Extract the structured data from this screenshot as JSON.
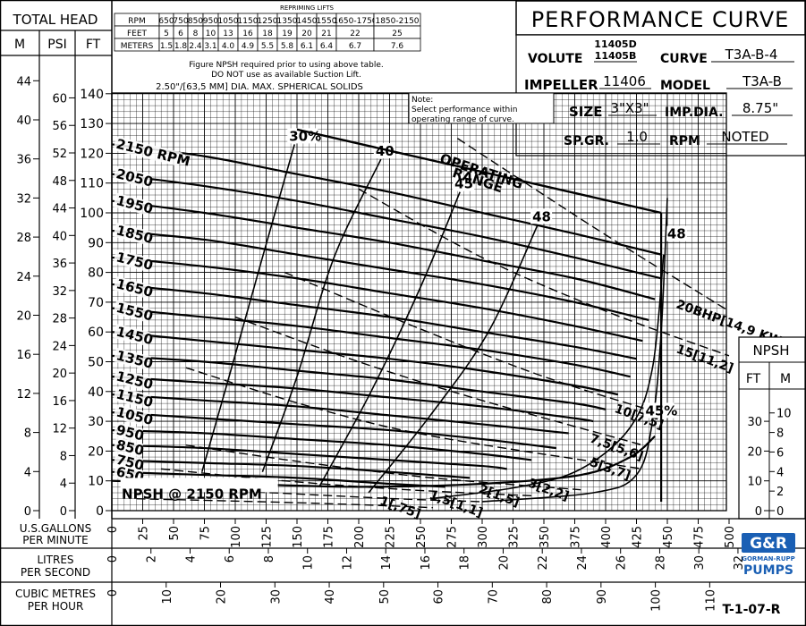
{
  "header": {
    "left_title": "TOTAL HEAD",
    "col_m": "M",
    "col_psi": "PSI",
    "col_ft": "FT",
    "title": "PERFORMANCE CURVE",
    "volute_label": "VOLUTE",
    "volute_value_1": "11405D",
    "volute_value_2": "11405B",
    "curve_label": "CURVE",
    "curve_value": "T3A-B-4",
    "impeller_label": "IMPELLER",
    "impeller_value": "11406",
    "model_label": "MODEL",
    "model_value": "T3A-B",
    "size_label": "SIZE",
    "size_value": "3\"X3\"",
    "impdia_label": "IMP.DIA.",
    "impdia_value": "8.75\"",
    "spgr_label": "SP.GR.",
    "spgr_value": "1.0",
    "rpm_label": "RPM",
    "rpm_value": "NOTED",
    "npsh_label": "NPSH",
    "npsh_ft": "FT",
    "npsh_m": "M",
    "doc_id": "T-1-07-R",
    "brand_logo": "G&R",
    "brand_sub": "GORMAN-RUPP",
    "brand_pumps": "PUMPS"
  },
  "repriming": {
    "title": "REPRIMING LIFTS",
    "rows": [
      {
        "label": "RPM",
        "cells": [
          "650",
          "750",
          "850",
          "950",
          "1050",
          "1150",
          "1250",
          "1350",
          "1450",
          "1550",
          "1650-1750",
          "1850-2150"
        ]
      },
      {
        "label": "FEET",
        "cells": [
          "5",
          "6",
          "8",
          "10",
          "13",
          "16",
          "18",
          "19",
          "20",
          "21",
          "22",
          "25"
        ]
      },
      {
        "label": "METERS",
        "cells": [
          "1.5",
          "1.8",
          "2.4",
          "3.1",
          "4.0",
          "4.9",
          "5.5",
          "5.8",
          "6.1",
          "6.4",
          "6.7",
          "7.6"
        ]
      }
    ],
    "note_1": "Figure NPSH required prior to using above table.",
    "note_2": "DO NOT use as available Suction Lift.",
    "solids": "2.50\"/[63,5 MM] DIA. MAX. SPHERICAL SOLIDS"
  },
  "note": {
    "l1": "Note:",
    "l2": "Select performance within",
    "l3": "operating range of curve."
  },
  "chart_data": {
    "type": "line",
    "x_primary": {
      "label_1": "U.S.GALLONS",
      "label_2": "PER MINUTE",
      "ticks": [
        0,
        25,
        50,
        75,
        100,
        125,
        150,
        175,
        200,
        225,
        250,
        275,
        300,
        325,
        350,
        375,
        400,
        425,
        450,
        475,
        500
      ]
    },
    "x_litres": {
      "label_1": "LITRES",
      "label_2": "PER SECOND",
      "ticks": [
        0,
        2,
        4,
        6,
        8,
        10,
        12,
        14,
        16,
        18,
        20,
        22,
        24,
        26,
        28,
        30,
        32
      ]
    },
    "x_cubic": {
      "label_1": "CUBIC METRES",
      "label_2": "PER HOUR",
      "ticks": [
        0,
        10,
        20,
        30,
        40,
        50,
        60,
        70,
        80,
        90,
        100,
        110
      ]
    },
    "y_ft_ticks": [
      0,
      10,
      20,
      30,
      40,
      50,
      60,
      70,
      80,
      90,
      100,
      110,
      120,
      130,
      140
    ],
    "y_psi_ticks": [
      0,
      4,
      8,
      12,
      16,
      20,
      24,
      28,
      32,
      36,
      40,
      44,
      48,
      52,
      56,
      60
    ],
    "y_m_ticks": [
      0,
      4,
      8,
      12,
      16,
      20,
      24,
      28,
      32,
      36,
      40,
      44
    ],
    "npsh_ft_ticks": [
      0,
      10,
      20,
      30
    ],
    "npsh_m_ticks": [
      0,
      2,
      4,
      6,
      8,
      10
    ],
    "ylim": [
      0,
      140
    ],
    "xlim": [
      0,
      500
    ],
    "head_curves": [
      {
        "name": "2150 RPM",
        "points": [
          [
            0,
            123
          ],
          [
            75,
            119
          ],
          [
            150,
            113
          ],
          [
            225,
            107
          ],
          [
            300,
            100
          ],
          [
            375,
            93
          ],
          [
            445,
            86
          ]
        ]
      },
      {
        "name": "2050",
        "points": [
          [
            0,
            113
          ],
          [
            75,
            109
          ],
          [
            150,
            104
          ],
          [
            225,
            98
          ],
          [
            300,
            92
          ],
          [
            375,
            85
          ],
          [
            445,
            78
          ]
        ]
      },
      {
        "name": "1950",
        "points": [
          [
            0,
            104
          ],
          [
            75,
            100
          ],
          [
            150,
            95
          ],
          [
            225,
            90
          ],
          [
            300,
            84
          ],
          [
            375,
            78
          ],
          [
            440,
            71
          ]
        ]
      },
      {
        "name": "1850",
        "points": [
          [
            0,
            94
          ],
          [
            75,
            91
          ],
          [
            150,
            86
          ],
          [
            225,
            81
          ],
          [
            300,
            76
          ],
          [
            375,
            70
          ],
          [
            435,
            64
          ]
        ]
      },
      {
        "name": "1750",
        "points": [
          [
            0,
            85
          ],
          [
            75,
            82
          ],
          [
            150,
            78
          ],
          [
            225,
            73
          ],
          [
            300,
            68
          ],
          [
            375,
            62
          ],
          [
            430,
            57
          ]
        ]
      },
      {
        "name": "1650",
        "points": [
          [
            0,
            76
          ],
          [
            75,
            73
          ],
          [
            150,
            69
          ],
          [
            225,
            65
          ],
          [
            300,
            60
          ],
          [
            375,
            55
          ],
          [
            425,
            51
          ]
        ]
      },
      {
        "name": "1550",
        "points": [
          [
            0,
            68
          ],
          [
            75,
            65
          ],
          [
            150,
            62
          ],
          [
            225,
            58
          ],
          [
            300,
            54
          ],
          [
            375,
            49
          ],
          [
            420,
            45
          ]
        ]
      },
      {
        "name": "1450",
        "points": [
          [
            0,
            60
          ],
          [
            75,
            57
          ],
          [
            150,
            54
          ],
          [
            225,
            51
          ],
          [
            300,
            47
          ],
          [
            375,
            42
          ],
          [
            410,
            39
          ]
        ]
      },
      {
        "name": "1350",
        "points": [
          [
            0,
            52
          ],
          [
            75,
            50
          ],
          [
            150,
            47
          ],
          [
            225,
            44
          ],
          [
            300,
            40
          ],
          [
            375,
            36
          ],
          [
            400,
            34
          ]
        ]
      },
      {
        "name": "1250",
        "points": [
          [
            0,
            45
          ],
          [
            75,
            43
          ],
          [
            150,
            41
          ],
          [
            225,
            38
          ],
          [
            300,
            35
          ],
          [
            375,
            31
          ],
          [
            390,
            30
          ]
        ]
      },
      {
        "name": "1150",
        "points": [
          [
            0,
            39
          ],
          [
            75,
            37
          ],
          [
            150,
            35
          ],
          [
            225,
            32
          ],
          [
            300,
            29
          ],
          [
            370,
            26
          ]
        ]
      },
      {
        "name": "1050",
        "points": [
          [
            0,
            33
          ],
          [
            75,
            31
          ],
          [
            150,
            29
          ],
          [
            225,
            27
          ],
          [
            300,
            24
          ],
          [
            360,
            21
          ]
        ]
      },
      {
        "name": "950",
        "points": [
          [
            0,
            27
          ],
          [
            75,
            26
          ],
          [
            150,
            24
          ],
          [
            225,
            22
          ],
          [
            300,
            19
          ],
          [
            340,
            17
          ]
        ]
      },
      {
        "name": "850",
        "points": [
          [
            0,
            22
          ],
          [
            75,
            21
          ],
          [
            150,
            19
          ],
          [
            225,
            17
          ],
          [
            300,
            15
          ],
          [
            320,
            14
          ]
        ]
      },
      {
        "name": "750",
        "points": [
          [
            0,
            17
          ],
          [
            75,
            16
          ],
          [
            150,
            15
          ],
          [
            225,
            13
          ],
          [
            290,
            11
          ]
        ]
      },
      {
        "name": "650",
        "points": [
          [
            0,
            13
          ],
          [
            75,
            12
          ],
          [
            150,
            11
          ],
          [
            225,
            9
          ],
          [
            270,
            8
          ]
        ]
      }
    ],
    "efficiency_curves": [
      {
        "name": "30%",
        "points": [
          [
            73,
            13
          ],
          [
            95,
            45
          ],
          [
            122,
            85
          ],
          [
            148,
            123
          ]
        ]
      },
      {
        "name": "40",
        "points": [
          [
            122,
            13
          ],
          [
            150,
            45
          ],
          [
            180,
            85
          ],
          [
            218,
            118
          ]
        ]
      },
      {
        "name": "45",
        "points": [
          [
            168,
            8
          ],
          [
            210,
            40
          ],
          [
            250,
            75
          ],
          [
            282,
            107
          ]
        ]
      },
      {
        "name": "48",
        "points": [
          [
            208,
            6
          ],
          [
            258,
            32
          ],
          [
            305,
            60
          ],
          [
            345,
            96
          ]
        ]
      },
      {
        "name": "48",
        "points": [
          [
            258,
            4
          ],
          [
            330,
            8
          ],
          [
            380,
            14
          ],
          [
            420,
            28
          ],
          [
            438,
            48
          ],
          [
            447,
            86
          ]
        ]
      },
      {
        "name": "45%",
        "points": [
          [
            300,
            3
          ],
          [
            390,
            6
          ],
          [
            425,
            12
          ],
          [
            438,
            30
          ],
          [
            445,
            60
          ],
          [
            450,
            105
          ]
        ]
      }
    ],
    "power_curves": [
      {
        "name": "20BHP[14,9 KW]",
        "points": [
          [
            280,
            125
          ],
          [
            350,
            106
          ],
          [
            410,
            90
          ],
          [
            500,
            67
          ]
        ]
      },
      {
        "name": "15[11,2]",
        "points": [
          [
            200,
            108
          ],
          [
            300,
            85
          ],
          [
            400,
            67
          ],
          [
            500,
            52
          ]
        ]
      },
      {
        "name": "10[7,5]",
        "points": [
          [
            140,
            80
          ],
          [
            250,
            61
          ],
          [
            350,
            45
          ],
          [
            450,
            32
          ]
        ]
      },
      {
        "name": "7,5[5,6]",
        "points": [
          [
            100,
            65
          ],
          [
            200,
            50
          ],
          [
            300,
            37
          ],
          [
            430,
            22
          ]
        ]
      },
      {
        "name": "5[3,7]",
        "points": [
          [
            60,
            48
          ],
          [
            160,
            35
          ],
          [
            260,
            25
          ],
          [
            430,
            14
          ]
        ]
      },
      {
        "name": "3[2,2]",
        "points": [
          [
            60,
            22
          ],
          [
            160,
            16
          ],
          [
            260,
            11
          ],
          [
            380,
            7
          ]
        ]
      },
      {
        "name": "2[1,5]",
        "points": [
          [
            40,
            14
          ],
          [
            140,
            10
          ],
          [
            240,
            7
          ],
          [
            340,
            5
          ]
        ]
      },
      {
        "name": "1,5[1,1]",
        "points": [
          [
            30,
            8
          ],
          [
            130,
            6
          ],
          [
            230,
            4
          ],
          [
            300,
            3
          ]
        ]
      },
      {
        "name": "1[,75]",
        "points": [
          [
            20,
            4
          ],
          [
            120,
            3
          ],
          [
            200,
            2
          ],
          [
            260,
            1
          ]
        ]
      }
    ],
    "operating_range": {
      "label_1": "OPERATING",
      "label_2": "RANGE",
      "points": [
        [
          150,
          128
        ],
        [
          445,
          100
        ]
      ]
    },
    "npsh_curve": {
      "name": "NPSH @ 2150 RPM",
      "points": [
        [
          0,
          10
        ],
        [
          100,
          9
        ],
        [
          200,
          8
        ],
        [
          300,
          9
        ],
        [
          380,
          12
        ],
        [
          420,
          18
        ],
        [
          440,
          25
        ]
      ]
    }
  }
}
